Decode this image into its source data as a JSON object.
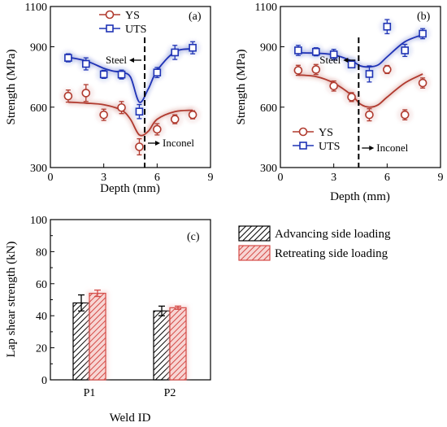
{
  "chart_data": [
    {
      "type": "line",
      "panel_label": "(a)",
      "xlabel": "Depth (mm)",
      "ylabel": "Strength (MPa)",
      "xlim": [
        0,
        9
      ],
      "ylim": [
        300,
        1100
      ],
      "xticks": [
        0,
        3,
        6,
        9
      ],
      "yticks": [
        300,
        600,
        900
      ],
      "ytick_labels_top": "1100",
      "legend_position": "top-center",
      "series": [
        {
          "name": "YS",
          "marker": "circle",
          "color": "#b03a2e",
          "x": [
            1,
            2,
            3,
            4,
            5,
            6,
            7,
            8
          ],
          "y": [
            655,
            670,
            562,
            598,
            403,
            490,
            540,
            562
          ],
          "err": [
            30,
            42,
            28,
            30,
            40,
            28,
            22,
            20
          ],
          "fit_x": [
            1,
            2,
            3,
            4,
            4.5,
            5,
            5.5,
            6,
            7,
            8
          ],
          "fit_y": [
            625,
            620,
            612,
            585,
            540,
            462,
            480,
            540,
            578,
            585
          ]
        },
        {
          "name": "UTS",
          "marker": "square",
          "color": "#1f33b5",
          "x": [
            1,
            2,
            3,
            4,
            5,
            6,
            7,
            8
          ],
          "y": [
            845,
            815,
            763,
            762,
            578,
            772,
            872,
            895
          ],
          "err": [
            20,
            30,
            20,
            22,
            35,
            25,
            35,
            30
          ],
          "fit_x": [
            1,
            2,
            3,
            3.5,
            4,
            4.5,
            5,
            5.5,
            6,
            7,
            8
          ],
          "fit_y": [
            848,
            830,
            793,
            780,
            772,
            750,
            625,
            690,
            782,
            875,
            890
          ]
        }
      ],
      "boundary": {
        "x": 5.3,
        "top_label": "Steel",
        "bottom_label": "Inconel"
      }
    },
    {
      "type": "line",
      "panel_label": "(b)",
      "xlabel": "Depth (mm)",
      "ylabel": "Strength (MPa)",
      "xlim": [
        0,
        9
      ],
      "ylim": [
        300,
        1100
      ],
      "xticks": [
        0,
        3,
        6,
        9
      ],
      "yticks": [
        300,
        600,
        900
      ],
      "ytick_labels_top": "1100",
      "legend_position": "bottom-left",
      "series": [
        {
          "name": "YS",
          "marker": "circle",
          "color": "#b03a2e",
          "x": [
            1,
            2,
            3,
            4,
            5,
            6,
            7,
            8
          ],
          "y": [
            783,
            787,
            705,
            650,
            562,
            787,
            562,
            720
          ],
          "err": [
            25,
            25,
            25,
            22,
            30,
            20,
            25,
            25
          ],
          "fit_x": [
            1,
            2,
            3,
            4,
            4.5,
            5,
            5.5,
            6,
            7,
            8
          ],
          "fit_y": [
            760,
            752,
            720,
            660,
            615,
            600,
            612,
            650,
            720,
            765
          ]
        },
        {
          "name": "UTS",
          "marker": "square",
          "color": "#1f33b5",
          "x": [
            1,
            2,
            3,
            4,
            5,
            6,
            7,
            8
          ],
          "y": [
            882,
            875,
            862,
            812,
            765,
            1000,
            882,
            965
          ],
          "err": [
            25,
            20,
            25,
            15,
            40,
            35,
            30,
            25
          ],
          "fit_x": [
            1,
            2,
            3,
            4,
            4.5,
            5,
            5.5,
            6,
            7,
            8
          ],
          "fit_y": [
            870,
            868,
            860,
            830,
            805,
            800,
            810,
            850,
            925,
            960
          ]
        }
      ],
      "boundary": {
        "x": 4.4,
        "top_label": "Steel",
        "bottom_label": "Inconel"
      }
    },
    {
      "type": "bar",
      "panel_label": "(c)",
      "xlabel": "Weld ID",
      "ylabel": "Lap shear strength (kN)",
      "categories": [
        "P1",
        "P2"
      ],
      "ylim": [
        0,
        100
      ],
      "yticks": [
        0,
        10,
        20,
        30,
        40,
        50,
        60,
        70,
        80,
        90,
        100
      ],
      "ytick_labels": [
        "0",
        "20",
        "40",
        "60",
        "80",
        "100"
      ],
      "legend_position": "outside-right",
      "series": [
        {
          "name": "Advancing side loading",
          "pattern": "hatch-black",
          "color": "#000000",
          "values": [
            48,
            43
          ],
          "err": [
            5,
            3
          ]
        },
        {
          "name": "Retreating side loading",
          "pattern": "hatch-red",
          "color": "#d44a46",
          "values": [
            54,
            45
          ],
          "err": [
            2,
            1
          ]
        }
      ]
    }
  ]
}
